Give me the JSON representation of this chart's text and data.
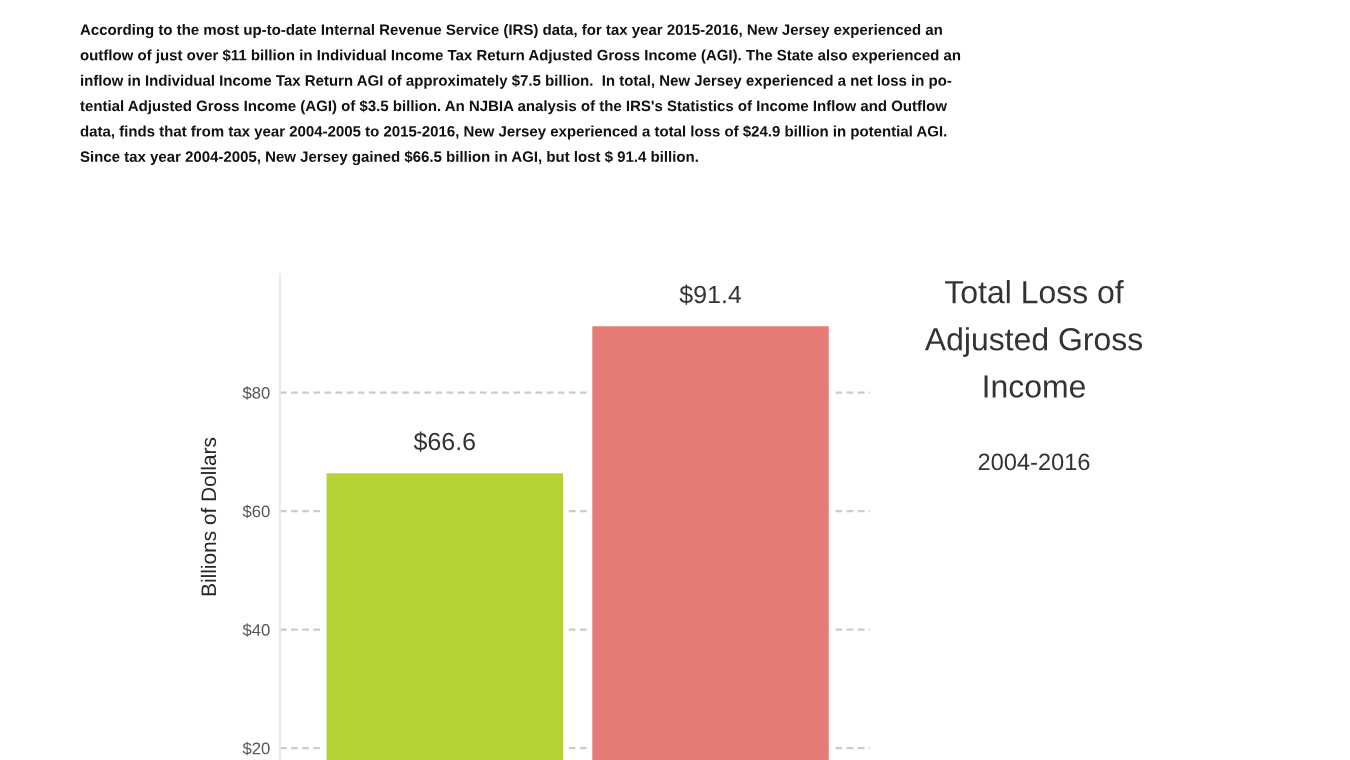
{
  "chart_data": {
    "type": "bar",
    "title": "Total Loss of\nAdjusted Gross\nIncome",
    "subtitle": "2004-2016",
    "ylabel": "Billions of Dollars",
    "annotations": [
      "According to the most up-to-date Internal Revenue Service (IRS) data, for tax year 2015-2016, New Jersey experienced an\noutflow of just over $11 billion in Individual Income Tax Return Adjusted Gross Income (AGI). The State also experienced an\ninflow in Individual Income Tax Return AGI of approximately $7.5 billion.  In total, New Jersey experienced a net loss in po-\ntential Adjusted Gross Income (AGI) of $3.5 billion. An NJBIA analysis of the IRS's Statistics of Income Inflow and Outflow\ndata, finds that from tax year 2004-2005 to 2015-2016, New Jersey experienced a total loss of $24.9 billion in potential AGI.\nSince tax year 2004-2005, New Jersey gained $66.5 billion in AGI, but lost $ 91.4 billion."
    ],
    "categories": [
      null,
      null
    ],
    "values": [
      66.6,
      91.4
    ],
    "colors": [
      "#b5d334",
      "#e57b74"
    ],
    "value_labels": [
      "$66.6",
      "$91.4"
    ],
    "ylim": [
      18,
      100
    ],
    "yticks": [
      {
        "value": 20,
        "label": "$20"
      },
      {
        "value": 40,
        "label": "$40"
      },
      {
        "value": 60,
        "label": "$60"
      },
      {
        "value": 80,
        "label": "$80"
      }
    ],
    "grid": "y",
    "tick_labels": "y"
  }
}
